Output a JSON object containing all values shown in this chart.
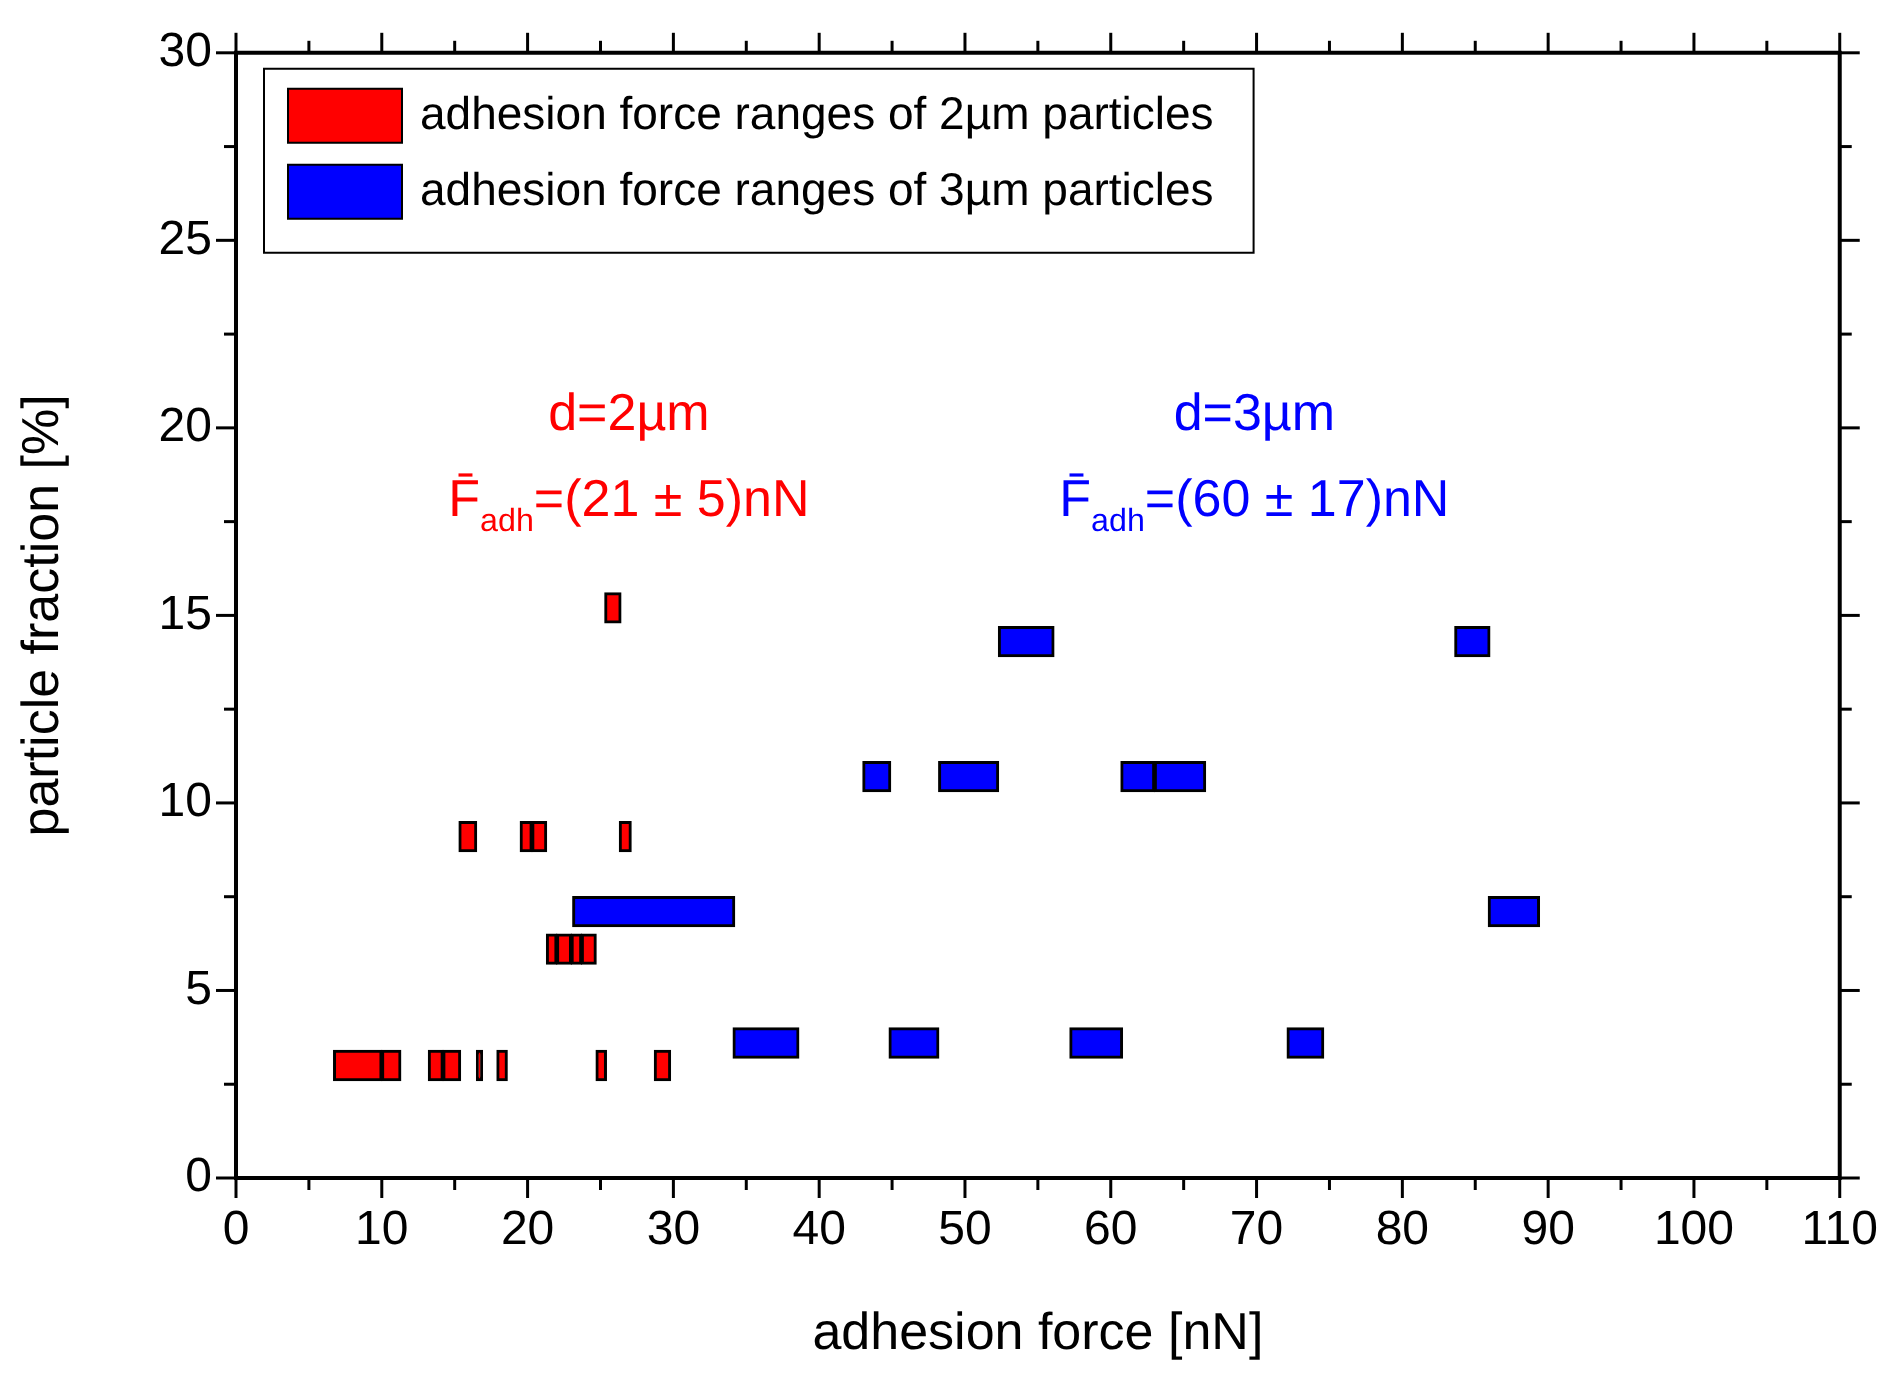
{
  "chart_data": {
    "type": "bar",
    "orientation": "horizontal",
    "xlabel": "adhesion force [nN]",
    "ylabel": "particle fraction [%]",
    "xlim": [
      0,
      110
    ],
    "xticks": [
      0,
      {
        "value": 5,
        "label": null
      },
      10,
      {
        "value": 15,
        "label": null
      },
      20,
      {
        "value": 25,
        "label": null
      },
      30,
      {
        "value": 35,
        "label": null
      },
      40,
      {
        "value": 45,
        "label": null
      },
      50,
      {
        "value": 55,
        "label": null
      },
      60,
      {
        "value": 65,
        "label": null
      },
      70,
      {
        "value": 75,
        "label": null
      },
      80,
      {
        "value": 85,
        "label": null
      },
      90,
      {
        "value": 95,
        "label": null
      },
      100,
      {
        "value": 105,
        "label": null
      },
      110
    ],
    "ylim": [
      0,
      30
    ],
    "yticks": [
      0,
      {
        "value": 2.5,
        "label": null
      },
      5,
      {
        "value": 7.5,
        "label": null
      },
      10,
      {
        "value": 12.5,
        "label": null
      },
      15,
      {
        "value": 17.5,
        "label": null
      },
      20,
      {
        "value": 22.5,
        "label": null
      },
      25,
      {
        "value": 27.5,
        "label": null
      },
      30
    ],
    "legend": "top left",
    "grid": false,
    "series": [
      {
        "name": "adhesion force ranges of 2µm particles",
        "color": "#ff0000",
        "x": [
          15.2
        ],
        "base": [
          25.3
        ],
        "values": [
          1.1
        ]
      },
      {
        "color": "#ff0000",
        "x": [
          9.1
        ],
        "base": [
          15.3
        ],
        "values": [
          1.2
        ]
      },
      {
        "color": "#ff0000",
        "x": [
          9.1
        ],
        "base": [
          19.5
        ],
        "values": [
          0.8
        ]
      },
      {
        "color": "#ff0000",
        "x": [
          9.1
        ],
        "base": [
          20.3
        ],
        "values": [
          1.0
        ]
      },
      {
        "color": "#ff0000",
        "x": [
          9.1
        ],
        "base": [
          26.3
        ],
        "values": [
          0.8
        ]
      },
      {
        "color": "#ff0000",
        "x": [
          6.1
        ],
        "base": [
          21.3
        ],
        "values": [
          0.7
        ]
      },
      {
        "color": "#ff0000",
        "x": [
          6.1
        ],
        "base": [
          22.0
        ],
        "values": [
          1.0
        ]
      },
      {
        "color": "#ff0000",
        "x": [
          6.1
        ],
        "base": [
          23.0
        ],
        "values": [
          0.7
        ]
      },
      {
        "color": "#ff0000",
        "x": [
          6.1
        ],
        "base": [
          23.7
        ],
        "values": [
          1.0
        ]
      },
      {
        "color": "#ff0000",
        "x": [
          3.0
        ],
        "base": [
          6.7
        ],
        "values": [
          3.3
        ]
      },
      {
        "color": "#ff0000",
        "x": [
          3.0
        ],
        "base": [
          10.0
        ],
        "values": [
          1.3
        ]
      },
      {
        "color": "#ff0000",
        "x": [
          3.0
        ],
        "base": [
          13.2
        ],
        "values": [
          1.0
        ]
      },
      {
        "color": "#ff0000",
        "x": [
          3.0
        ],
        "base": [
          14.2
        ],
        "values": [
          1.2
        ]
      },
      {
        "color": "#ff0000",
        "x": [
          3.0
        ],
        "base": [
          16.5
        ],
        "values": [
          0.4
        ]
      },
      {
        "color": "#ff0000",
        "x": [
          3.0
        ],
        "base": [
          17.9
        ],
        "values": [
          0.7
        ]
      },
      {
        "color": "#ff0000",
        "x": [
          3.0
        ],
        "base": [
          24.7
        ],
        "values": [
          0.7
        ]
      },
      {
        "color": "#ff0000",
        "x": [
          3.0
        ],
        "base": [
          28.7
        ],
        "values": [
          1.1
        ]
      },
      {
        "name": "adhesion force ranges of 3µm particles",
        "color": "#0000ff",
        "x": [
          14.3
        ],
        "base": [
          52.3
        ],
        "values": [
          3.8
        ]
      },
      {
        "color": "#0000ff",
        "x": [
          14.3
        ],
        "base": [
          83.6
        ],
        "values": [
          2.4
        ]
      },
      {
        "color": "#0000ff",
        "x": [
          10.7
        ],
        "base": [
          43.0
        ],
        "values": [
          1.9
        ]
      },
      {
        "color": "#0000ff",
        "x": [
          10.7
        ],
        "base": [
          48.2
        ],
        "values": [
          4.1
        ]
      },
      {
        "color": "#0000ff",
        "x": [
          10.7
        ],
        "base": [
          60.7
        ],
        "values": [
          2.3
        ]
      },
      {
        "color": "#0000ff",
        "x": [
          10.7
        ],
        "base": [
          63.0
        ],
        "values": [
          3.5
        ]
      },
      {
        "color": "#0000ff",
        "x": [
          7.1
        ],
        "base": [
          23.1
        ],
        "values": [
          11.1
        ]
      },
      {
        "color": "#0000ff",
        "x": [
          7.1
        ],
        "base": [
          85.9
        ],
        "values": [
          3.5
        ]
      },
      {
        "color": "#0000ff",
        "x": [
          3.6
        ],
        "base": [
          34.1
        ],
        "values": [
          4.5
        ]
      },
      {
        "color": "#0000ff",
        "x": [
          3.6
        ],
        "base": [
          44.8
        ],
        "values": [
          3.4
        ]
      },
      {
        "color": "#0000ff",
        "x": [
          3.6
        ],
        "base": [
          57.2
        ],
        "values": [
          3.6
        ]
      },
      {
        "color": "#0000ff",
        "x": [
          3.6
        ],
        "base": [
          72.1
        ],
        "values": [
          2.5
        ]
      }
    ],
    "annotations": [
      "d=2µm",
      "F̄$_{adh}$=(21 ± 5)nN",
      "d=3µm",
      "F̄$_{adh}$=(60 ± 17)nN"
    ]
  }
}
